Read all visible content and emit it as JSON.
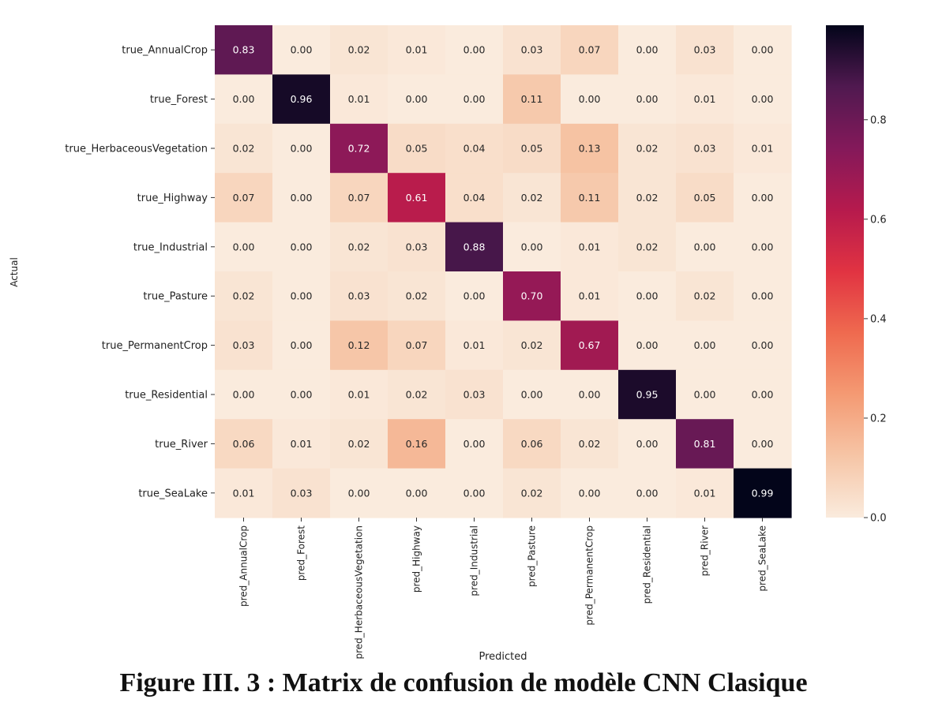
{
  "figure": {
    "caption": "Figure III. 3 : Matrix de confusion de modèle CNN Clasique"
  },
  "chart_data": {
    "type": "heatmap",
    "xlabel": "Predicted",
    "ylabel": "Actual",
    "rows": [
      "true_AnnualCrop",
      "true_Forest",
      "true_HerbaceousVegetation",
      "true_Highway",
      "true_Industrial",
      "true_Pasture",
      "true_PermanentCrop",
      "true_Residential",
      "true_River",
      "true_SeaLake"
    ],
    "columns": [
      "pred_AnnualCrop",
      "pred_Forest",
      "pred_HerbaceousVegetation",
      "pred_Highway",
      "pred_Industrial",
      "pred_Pasture",
      "pred_PermanentCrop",
      "pred_Residential",
      "pred_River",
      "pred_SeaLake"
    ],
    "values": [
      [
        0.83,
        0.0,
        0.02,
        0.01,
        0.0,
        0.03,
        0.07,
        0.0,
        0.03,
        0.0
      ],
      [
        0.0,
        0.96,
        0.01,
        0.0,
        0.0,
        0.11,
        0.0,
        0.0,
        0.01,
        0.0
      ],
      [
        0.02,
        0.0,
        0.72,
        0.05,
        0.04,
        0.05,
        0.13,
        0.02,
        0.03,
        0.01
      ],
      [
        0.07,
        0.0,
        0.07,
        0.61,
        0.04,
        0.02,
        0.11,
        0.02,
        0.05,
        0.0
      ],
      [
        0.0,
        0.0,
        0.02,
        0.03,
        0.88,
        0.0,
        0.01,
        0.02,
        0.0,
        0.0
      ],
      [
        0.02,
        0.0,
        0.03,
        0.02,
        0.0,
        0.7,
        0.01,
        0.0,
        0.02,
        0.0
      ],
      [
        0.03,
        0.0,
        0.12,
        0.07,
        0.01,
        0.02,
        0.67,
        0.0,
        0.0,
        0.0
      ],
      [
        0.0,
        0.0,
        0.01,
        0.02,
        0.03,
        0.0,
        0.0,
        0.95,
        0.0,
        0.0
      ],
      [
        0.06,
        0.01,
        0.02,
        0.16,
        0.0,
        0.06,
        0.02,
        0.0,
        0.81,
        0.0
      ],
      [
        0.01,
        0.03,
        0.0,
        0.0,
        0.0,
        0.02,
        0.0,
        0.0,
        0.01,
        0.99
      ]
    ],
    "colorbar": {
      "range": [
        0.0,
        0.99
      ],
      "ticks": [
        "0.0",
        "0.2",
        "0.4",
        "0.6",
        "0.8"
      ],
      "colormap": "rocket-reversed"
    },
    "grid": false,
    "legend": "colorbar-right"
  }
}
